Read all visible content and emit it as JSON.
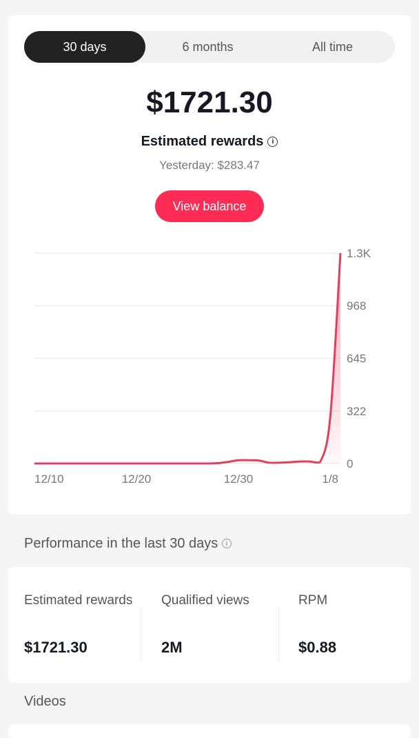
{
  "tabs": [
    {
      "label": "30 days",
      "selected": true
    },
    {
      "label": "6 months",
      "selected": false
    },
    {
      "label": "All time",
      "selected": false
    }
  ],
  "summary": {
    "amount": "$1721.30",
    "label": "Estimated rewards",
    "yesterday": "Yesterday: $283.47",
    "button": "View balance",
    "info_icon": "info-icon"
  },
  "colors": {
    "accent": "#fe2c55",
    "line": "#e0405f",
    "selected_tab": "#222222"
  },
  "chart_data": {
    "type": "area",
    "ylabels": [
      "0",
      "322",
      "645",
      "968",
      "1.3K"
    ],
    "yticks": [
      0,
      322,
      645,
      968,
      1290
    ],
    "ylim": [
      0,
      1290
    ],
    "xlabels": [
      "12/10",
      "12/20",
      "12/30",
      "1/8"
    ],
    "grid": true,
    "x": [
      "12/10",
      "12/11",
      "12/12",
      "12/13",
      "12/14",
      "12/15",
      "12/16",
      "12/17",
      "12/18",
      "12/19",
      "12/20",
      "12/21",
      "12/22",
      "12/23",
      "12/24",
      "12/25",
      "12/26",
      "12/27",
      "12/28",
      "12/29",
      "12/30",
      "12/31",
      "1/1",
      "1/2",
      "1/3",
      "1/4",
      "1/5",
      "1/6",
      "1/7",
      "1/8",
      "1/9"
    ],
    "values": [
      0,
      0,
      0,
      0,
      0,
      0,
      0,
      0,
      0,
      0,
      0,
      0,
      0,
      0,
      0,
      0,
      0,
      0,
      2,
      10,
      20,
      20,
      18,
      5,
      5,
      8,
      12,
      12,
      8,
      283.47,
      1290
    ]
  },
  "performance": {
    "heading": "Performance in the last 30 days",
    "metrics": [
      {
        "label": "Estimated rewards",
        "value": "$1721.30"
      },
      {
        "label": "Qualified views",
        "value": "2M"
      },
      {
        "label": "RPM",
        "value": "$0.88"
      }
    ]
  },
  "videos": {
    "heading": "Videos"
  }
}
